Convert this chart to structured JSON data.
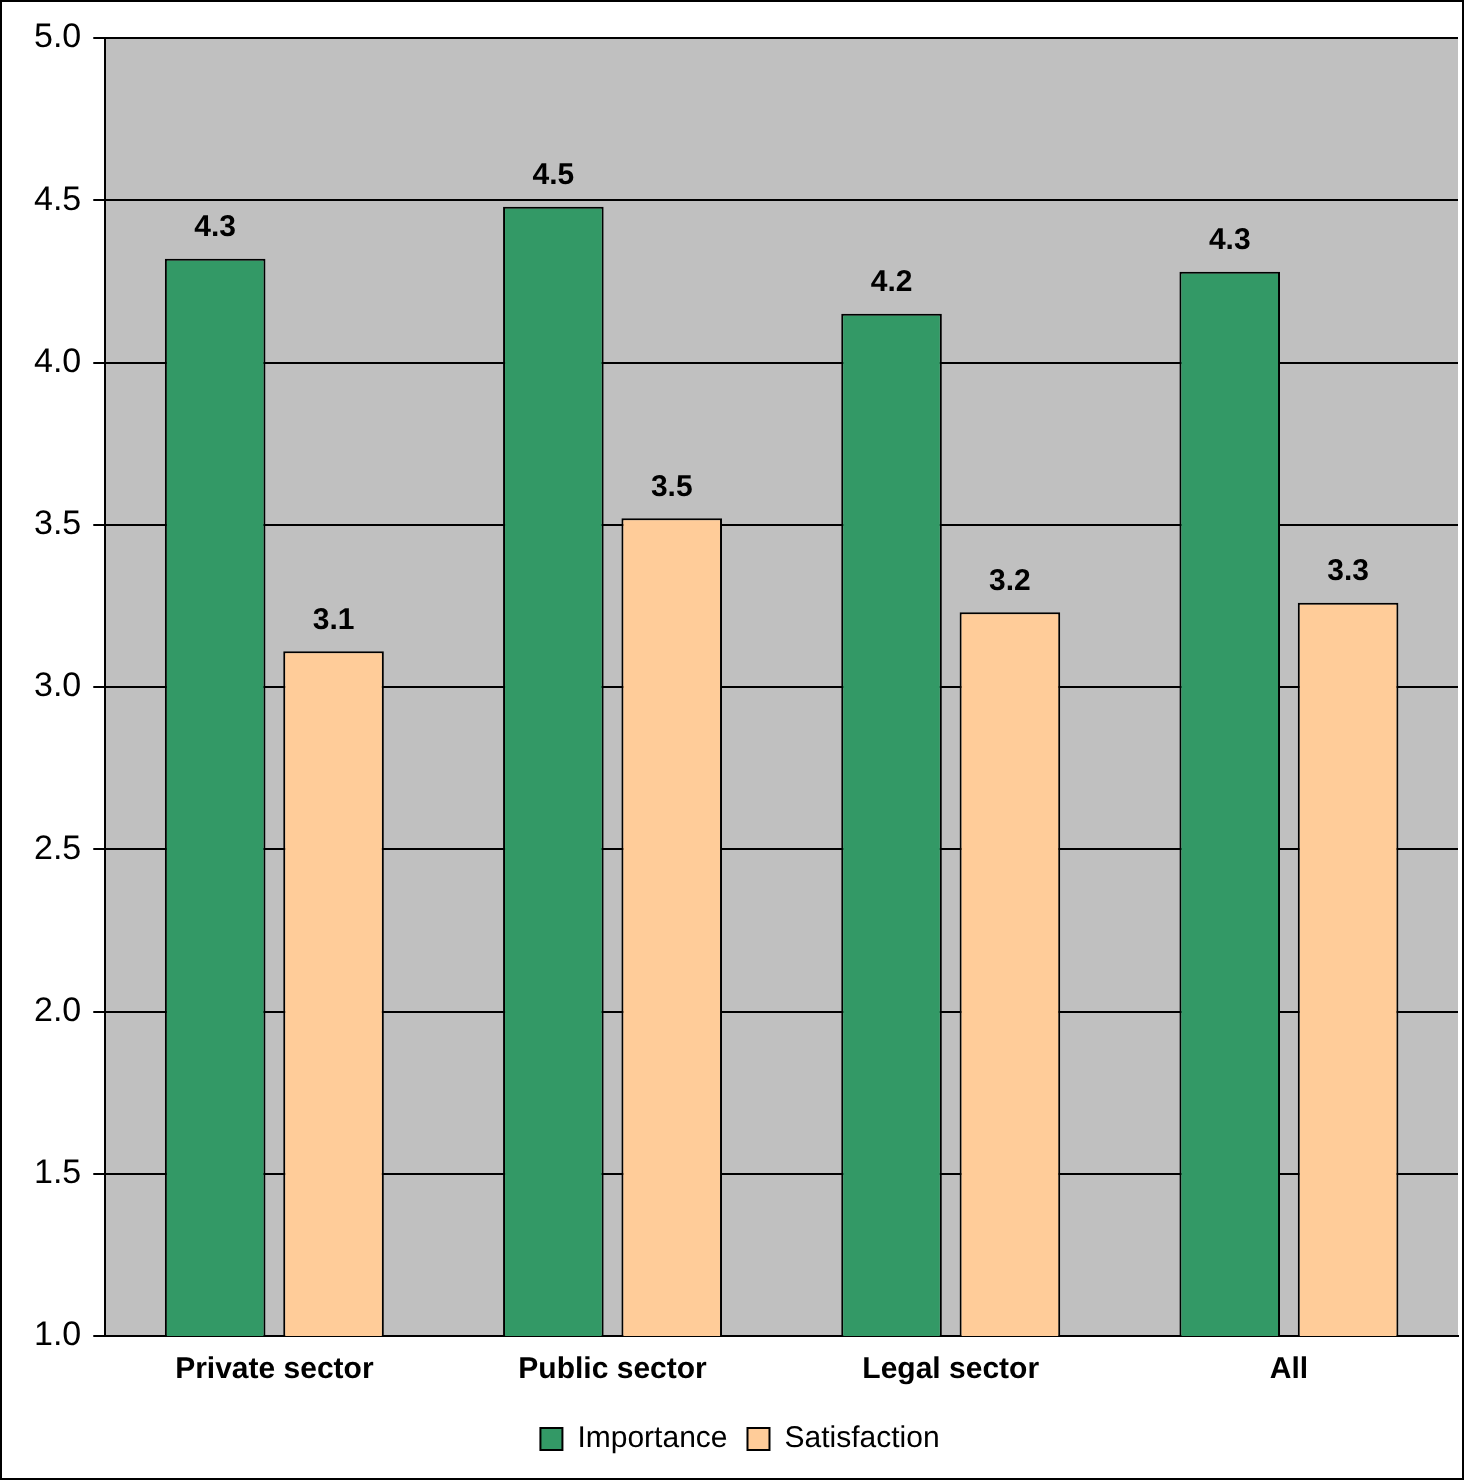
{
  "chart_data": {
    "type": "bar",
    "categories": [
      "Private sector",
      "Public sector",
      "Legal sector",
      "All"
    ],
    "series": [
      {
        "name": "Importance",
        "color": "#339966",
        "values": [
          4.32,
          4.48,
          4.15,
          4.28
        ],
        "value_labels": [
          "4.3",
          "4.5",
          "4.2",
          "4.3"
        ]
      },
      {
        "name": "Satisfaction",
        "color": "#ffcc99",
        "values": [
          3.11,
          3.52,
          3.23,
          3.26
        ],
        "value_labels": [
          "3.1",
          "3.5",
          "3.2",
          "3.3"
        ]
      }
    ],
    "ylim": [
      1,
      5
    ],
    "yticks": [
      {
        "value": 1,
        "label": "1.0"
      },
      {
        "value": 1.5,
        "label": "1.5"
      },
      {
        "value": 2,
        "label": "2.0"
      },
      {
        "value": 2.5,
        "label": "2.5"
      },
      {
        "value": 3,
        "label": "3.0"
      },
      {
        "value": 3.5,
        "label": "3.5"
      },
      {
        "value": 4,
        "label": "4.0"
      },
      {
        "value": 4.5,
        "label": "4.5"
      },
      {
        "value": 5,
        "label": "5.0"
      }
    ],
    "grid": "y",
    "legend": "bottom"
  }
}
